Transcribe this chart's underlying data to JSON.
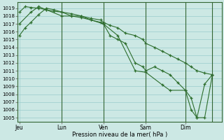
{
  "xlabel": "Pression niveau de la mer( hPa )",
  "bg_color": "#cce8e4",
  "grid_color": "#99cccc",
  "line_color": "#2d6e2d",
  "yticks": [
    1005,
    1006,
    1007,
    1008,
    1009,
    1010,
    1011,
    1012,
    1013,
    1014,
    1015,
    1016,
    1017,
    1018,
    1019
  ],
  "ylim": [
    1004.5,
    1019.8
  ],
  "xtick_labels": [
    "Jeu",
    "Lun",
    "Ven",
    "Sam",
    "Dim"
  ],
  "series1_x": [
    0.0,
    0.03,
    0.06,
    0.1,
    0.14,
    0.18,
    0.22,
    0.27,
    0.32,
    0.37,
    0.42,
    0.435,
    0.47,
    0.51,
    0.55,
    0.6,
    0.64,
    0.655,
    0.7,
    0.74,
    0.78,
    0.82,
    0.86,
    0.89,
    0.92,
    0.96,
    1.0
  ],
  "series1_y": [
    1015.5,
    1016.5,
    1017.2,
    1018.2,
    1019.0,
    1018.8,
    1018.5,
    1018.0,
    1017.8,
    1017.5,
    1017.2,
    1017.0,
    1015.5,
    1015.0,
    1014.5,
    1012.0,
    1011.5,
    1011.0,
    1011.5,
    1011.0,
    1010.5,
    1009.5,
    1008.5,
    1007.5,
    1005.0,
    1005.0,
    1010.5
  ],
  "series2_x": [
    0.0,
    0.03,
    0.06,
    0.1,
    0.14,
    0.18,
    0.22,
    0.27,
    0.32,
    0.37,
    0.42,
    0.435,
    0.47,
    0.51,
    0.55,
    0.6,
    0.64,
    0.655,
    0.7,
    0.74,
    0.78,
    0.82,
    0.86,
    0.89,
    0.92,
    0.96,
    1.0
  ],
  "series2_y": [
    1018.5,
    1019.2,
    1019.1,
    1019.0,
    1018.8,
    1018.6,
    1018.5,
    1018.3,
    1018.0,
    1017.7,
    1017.5,
    1017.2,
    1016.8,
    1016.5,
    1015.8,
    1015.5,
    1015.0,
    1014.5,
    1014.0,
    1013.5,
    1013.0,
    1012.5,
    1012.0,
    1011.5,
    1011.0,
    1010.7,
    1010.5
  ],
  "series3_x": [
    0.0,
    0.06,
    0.1,
    0.14,
    0.22,
    0.32,
    0.37,
    0.435,
    0.51,
    0.6,
    0.655,
    0.74,
    0.78,
    0.86,
    0.89,
    0.92,
    0.96,
    1.0
  ],
  "series3_y": [
    1017.0,
    1018.5,
    1019.2,
    1018.8,
    1018.0,
    1018.0,
    1017.5,
    1017.0,
    1015.5,
    1011.0,
    1010.8,
    1009.2,
    1008.5,
    1008.5,
    1006.0,
    1005.0,
    1009.3,
    1010.5
  ],
  "vlines": [
    0.22,
    0.435,
    0.655,
    0.86,
    1.0
  ],
  "xtick_pos": [
    0.0,
    0.22,
    0.435,
    0.655,
    0.86
  ]
}
